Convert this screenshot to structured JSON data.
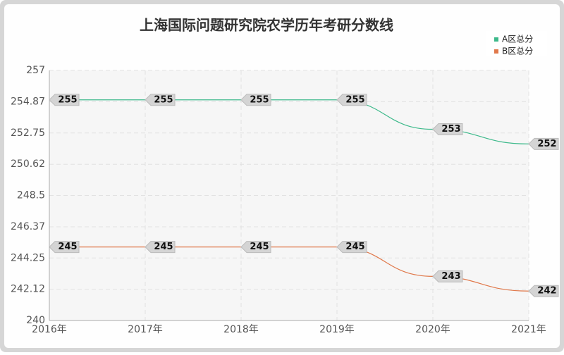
{
  "chart_data": {
    "type": "line",
    "title": "上海国际问题研究院农学历年考研分数线",
    "categories": [
      "2016年",
      "2017年",
      "2018年",
      "2019年",
      "2020年",
      "2021年"
    ],
    "series": [
      {
        "name": "A区总分",
        "color": "#3cb98a",
        "values": [
          255,
          255,
          255,
          255,
          253,
          252
        ]
      },
      {
        "name": "B区总分",
        "color": "#e0784a",
        "values": [
          245,
          245,
          245,
          245,
          243,
          242
        ]
      }
    ],
    "ylim": [
      240,
      257
    ],
    "yticks": [
      240,
      242.12,
      244.25,
      246.37,
      248.5,
      250.62,
      252.75,
      254.87,
      257
    ],
    "grid": true,
    "legend": "top-right"
  }
}
